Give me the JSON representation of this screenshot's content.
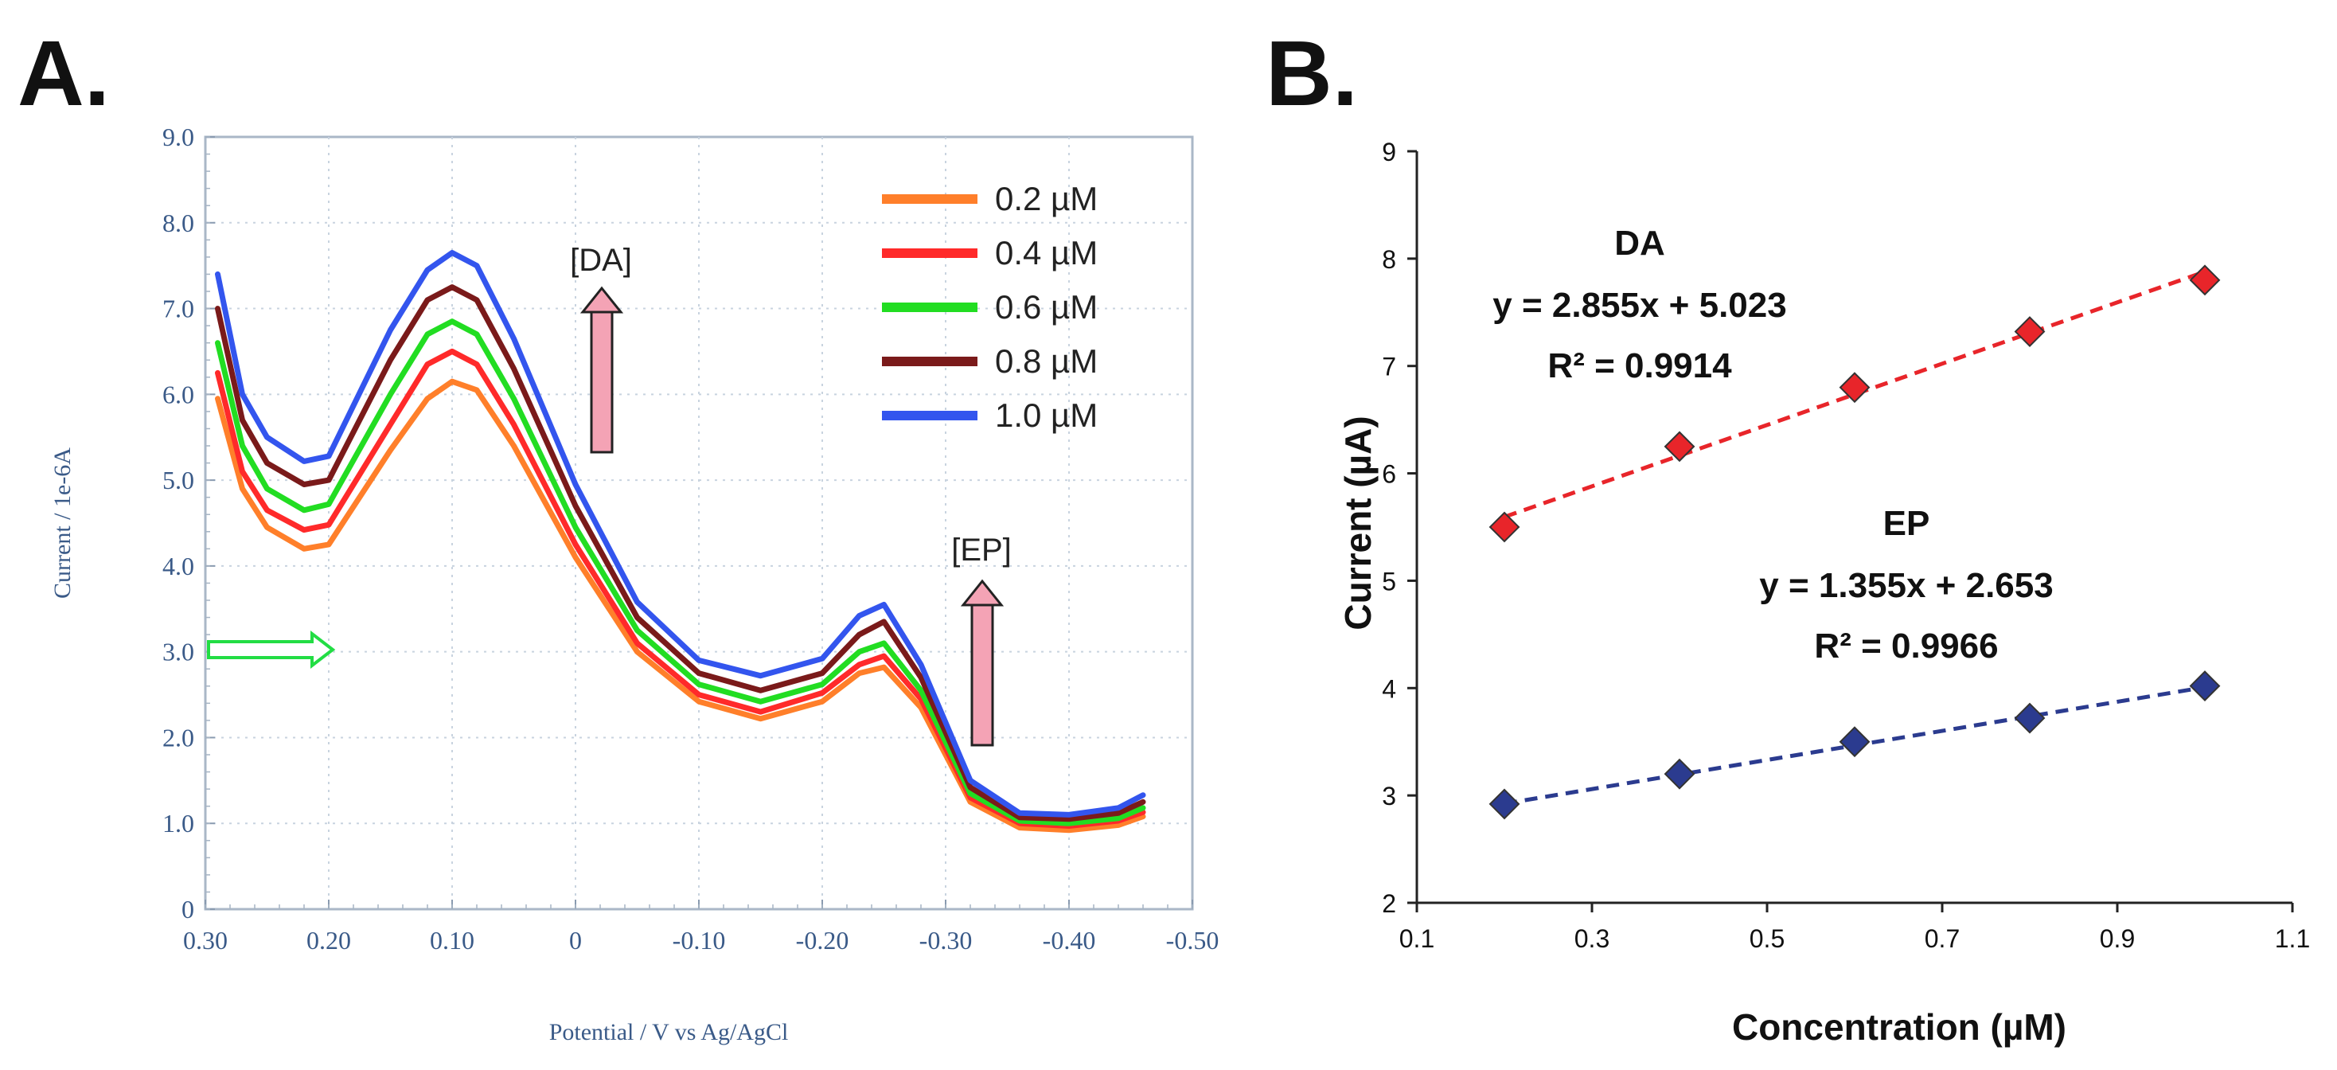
{
  "panels": {
    "a_label": "A.",
    "b_label": "B."
  },
  "chart_data": [
    {
      "type": "line",
      "panel": "A",
      "xlabel": "Potential / V vs Ag/AgCl",
      "ylabel": "Current / 1e-6A",
      "xlim": [
        0.3,
        -0.5
      ],
      "ylim": [
        0,
        9.0
      ],
      "xticks": [
        0.3,
        0.2,
        0.1,
        0,
        -0.1,
        -0.2,
        -0.3,
        -0.4,
        -0.5
      ],
      "xtick_labels": [
        "0.30",
        "0.20",
        "0.10",
        "0",
        "-0.10",
        "-0.20",
        "-0.30",
        "-0.40",
        "-0.50"
      ],
      "yticks": [
        0,
        1.0,
        2.0,
        3.0,
        4.0,
        5.0,
        6.0,
        7.0,
        8.0,
        9.0
      ],
      "ytick_labels": [
        "0",
        "1.0",
        "2.0",
        "3.0",
        "4.0",
        "5.0",
        "6.0",
        "7.0",
        "8.0",
        "9.0"
      ],
      "x": [
        0.29,
        0.27,
        0.25,
        0.22,
        0.2,
        0.15,
        0.12,
        0.1,
        0.08,
        0.05,
        0.0,
        -0.05,
        -0.1,
        -0.15,
        -0.2,
        -0.23,
        -0.25,
        -0.28,
        -0.32,
        -0.36,
        -0.4,
        -0.44,
        -0.46
      ],
      "series": [
        {
          "name": "0.2 µM",
          "color": "#ff7f2a",
          "values": [
            5.95,
            4.9,
            4.45,
            4.2,
            4.25,
            5.35,
            5.95,
            6.15,
            6.05,
            5.4,
            4.1,
            3.0,
            2.42,
            2.22,
            2.42,
            2.75,
            2.82,
            2.35,
            1.25,
            0.95,
            0.92,
            0.98,
            1.08
          ]
        },
        {
          "name": "0.4 µM",
          "color": "#ff2a2a",
          "values": [
            6.25,
            5.1,
            4.65,
            4.42,
            4.48,
            5.65,
            6.35,
            6.5,
            6.35,
            5.65,
            4.25,
            3.1,
            2.5,
            2.3,
            2.52,
            2.85,
            2.95,
            2.45,
            1.3,
            1.0,
            0.97,
            1.03,
            1.13
          ]
        },
        {
          "name": "0.6 µM",
          "color": "#22dd22",
          "values": [
            6.6,
            5.4,
            4.9,
            4.65,
            4.72,
            6.0,
            6.7,
            6.85,
            6.7,
            5.95,
            4.45,
            3.25,
            2.62,
            2.42,
            2.62,
            3.0,
            3.1,
            2.55,
            1.35,
            1.03,
            1.0,
            1.06,
            1.18
          ]
        },
        {
          "name": "0.8 µM",
          "color": "#7a1a1a",
          "values": [
            7.0,
            5.7,
            5.2,
            4.95,
            5.0,
            6.4,
            7.1,
            7.25,
            7.1,
            6.3,
            4.7,
            3.4,
            2.75,
            2.55,
            2.75,
            3.2,
            3.35,
            2.7,
            1.42,
            1.07,
            1.05,
            1.12,
            1.25
          ]
        },
        {
          "name": "1.0 µM",
          "color": "#3355ee",
          "values": [
            7.4,
            6.0,
            5.5,
            5.22,
            5.28,
            6.75,
            7.45,
            7.65,
            7.5,
            6.65,
            4.95,
            3.58,
            2.9,
            2.72,
            2.92,
            3.42,
            3.55,
            2.85,
            1.5,
            1.12,
            1.1,
            1.18,
            1.33
          ]
        }
      ],
      "annotations": {
        "da_label": "[DA]",
        "ep_label": "[EP]"
      }
    },
    {
      "type": "scatter",
      "panel": "B",
      "xlabel": "Concentration (µM)",
      "ylabel": "Current (µA)",
      "xlim": [
        0.1,
        1.1
      ],
      "ylim": [
        2,
        9
      ],
      "xticks": [
        0.1,
        0.3,
        0.5,
        0.7,
        0.9,
        1.1
      ],
      "xtick_labels": [
        "0.1",
        "0.3",
        "0.5",
        "0.7",
        "0.9",
        "1.1"
      ],
      "yticks": [
        2,
        3,
        4,
        5,
        6,
        7,
        8,
        9
      ],
      "ytick_labels": [
        "2",
        "3",
        "4",
        "5",
        "6",
        "7",
        "8",
        "9"
      ],
      "series": [
        {
          "name": "DA",
          "color": "#e8252a",
          "x": [
            0.2,
            0.4,
            0.6,
            0.8,
            1.0
          ],
          "y": [
            5.5,
            6.25,
            6.8,
            7.32,
            7.8
          ],
          "fit_slope": 2.855,
          "fit_intercept": 5.023,
          "equation": "y = 2.855x + 5.023",
          "r2": "R² = 0.9914"
        },
        {
          "name": "EP",
          "color": "#2b3b8f",
          "x": [
            0.2,
            0.4,
            0.6,
            0.8,
            1.0
          ],
          "y": [
            2.92,
            3.2,
            3.5,
            3.72,
            4.02
          ],
          "fit_slope": 1.355,
          "fit_intercept": 2.653,
          "equation": "y = 1.355x + 2.653",
          "r2": "R² = 0.9966"
        }
      ]
    }
  ]
}
